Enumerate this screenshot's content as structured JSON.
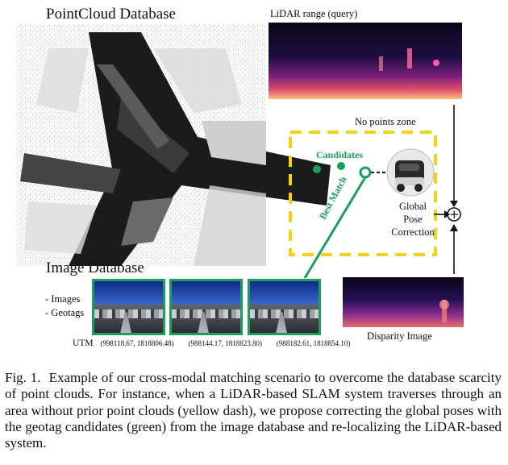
{
  "figure": {
    "pointcloud_title": "PointCloud Database",
    "lidar_title": "LiDAR range (query)",
    "no_points_zone": "No points zone",
    "candidates": "Candidates",
    "best_match": "Best Match",
    "global_pose_correction": [
      "Global",
      "Pose",
      "Correction"
    ],
    "image_db_title": "Image Database",
    "image_db_items": [
      "- Images",
      "- Geotags"
    ],
    "utm_label": "UTM",
    "utm_coords": [
      "(998118.67, 1818806.48)",
      "(988144.17, 1818823.80)",
      "(988182.61, 1818854.10)"
    ],
    "disparity_label": "Disparity Image",
    "plus_symbol": "+",
    "colors": {
      "candidate_green": "#1aa05a",
      "zone_yellow": "#f2d21b",
      "lidar_dark": "#120a26",
      "lidar_bright": "#f7b36b"
    }
  },
  "caption": {
    "label": "Fig. 1.",
    "text": "Example of our cross-modal matching scenario to overcome the database scarcity of point clouds. For instance, when a LiDAR-based SLAM system traverses through an area without prior point clouds (yellow dash), we propose correcting the global poses with the geotag candidates (green) from the image database and re-localizing the LiDAR-based system."
  }
}
